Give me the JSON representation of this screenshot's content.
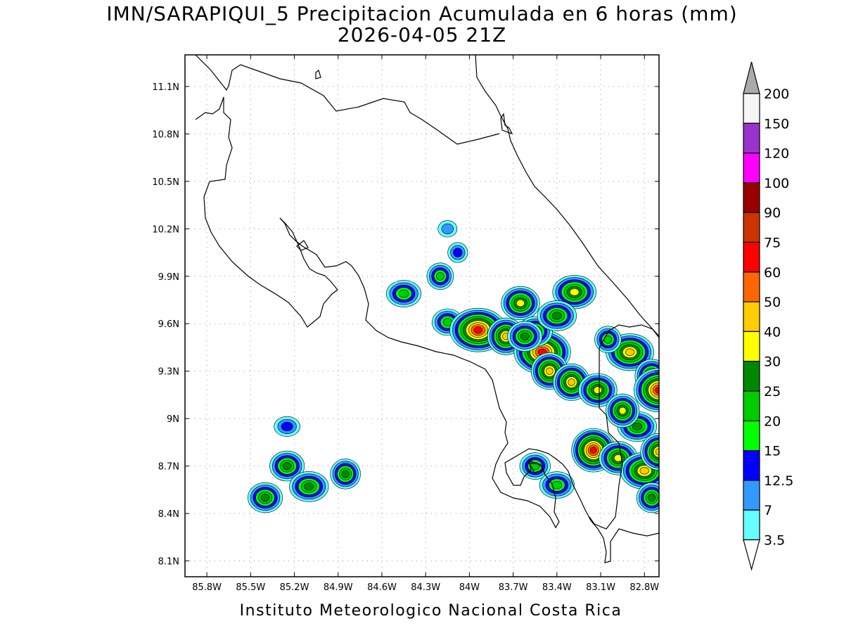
{
  "title": {
    "line1": "IMN/SARAPIQUI_5 Precipitacion Acumulada en 6 horas (mm)",
    "line2": "2026-04-05 21Z"
  },
  "credit": "Instituto Meteorologico Nacional Costa Rica",
  "map": {
    "lon_range": [
      -85.95,
      -82.7
    ],
    "lat_range": [
      8.0,
      11.3
    ],
    "x_ticks": [
      {
        "lon": -85.8,
        "label": "85.8W"
      },
      {
        "lon": -85.5,
        "label": "85.5W"
      },
      {
        "lon": -85.2,
        "label": "85.2W"
      },
      {
        "lon": -84.9,
        "label": "84.9W"
      },
      {
        "lon": -84.6,
        "label": "84.6W"
      },
      {
        "lon": -84.3,
        "label": "84.3W"
      },
      {
        "lon": -84.0,
        "label": "84W"
      },
      {
        "lon": -83.7,
        "label": "83.7W"
      },
      {
        "lon": -83.4,
        "label": "83.4W"
      },
      {
        "lon": -83.1,
        "label": "83.1W"
      },
      {
        "lon": -82.8,
        "label": "82.8W"
      }
    ],
    "y_ticks": [
      {
        "lat": 11.1,
        "label": "11.1N"
      },
      {
        "lat": 10.8,
        "label": "10.8N"
      },
      {
        "lat": 10.5,
        "label": "10.5N"
      },
      {
        "lat": 10.2,
        "label": "10.2N"
      },
      {
        "lat": 9.9,
        "label": "9.9N"
      },
      {
        "lat": 9.6,
        "label": "9.6N"
      },
      {
        "lat": 9.3,
        "label": "9.3N"
      },
      {
        "lat": 9.0,
        "label": "9N"
      },
      {
        "lat": 8.7,
        "label": "8.7N"
      },
      {
        "lat": 8.4,
        "label": "8.4N"
      },
      {
        "lat": 8.1,
        "label": "8.1N"
      }
    ],
    "gridlines": true
  },
  "colorbar": {
    "levels": [
      "3.5",
      "7",
      "12.5",
      "15",
      "20",
      "25",
      "30",
      "40",
      "50",
      "60",
      "75",
      "90",
      "100",
      "120",
      "150",
      "200"
    ],
    "colors": [
      "#ffffff",
      "#66ffff",
      "#3399ff",
      "#0000ff",
      "#00ff00",
      "#00cc00",
      "#008800",
      "#ffff00",
      "#ffcc00",
      "#ff6600",
      "#ff0000",
      "#cc3300",
      "#990000",
      "#ff00ff",
      "#9933cc",
      "#f5f5f5",
      "#aaaaaa"
    ]
  },
  "precip_cells": [
    {
      "lon": -84.08,
      "lat": 10.05,
      "peak": 12.5
    },
    {
      "lon": -84.15,
      "lat": 10.2,
      "peak": 7
    },
    {
      "lon": -84.45,
      "lat": 9.79,
      "peak": 20
    },
    {
      "lon": -84.2,
      "lat": 9.9,
      "peak": 20
    },
    {
      "lon": -84.15,
      "lat": 9.61,
      "peak": 20
    },
    {
      "lon": -83.94,
      "lat": 9.56,
      "peak": 60
    },
    {
      "lon": -83.75,
      "lat": 9.52,
      "peak": 40
    },
    {
      "lon": -83.65,
      "lat": 9.73,
      "peak": 30
    },
    {
      "lon": -83.5,
      "lat": 9.42,
      "peak": 60
    },
    {
      "lon": -83.45,
      "lat": 9.3,
      "peak": 40
    },
    {
      "lon": -83.55,
      "lat": 9.55,
      "peak": 25
    },
    {
      "lon": -83.28,
      "lat": 9.8,
      "peak": 30
    },
    {
      "lon": -83.3,
      "lat": 9.23,
      "peak": 40
    },
    {
      "lon": -83.12,
      "lat": 9.18,
      "peak": 30
    },
    {
      "lon": -82.9,
      "lat": 9.42,
      "peak": 40
    },
    {
      "lon": -82.75,
      "lat": 9.27,
      "peak": 30
    },
    {
      "lon": -82.7,
      "lat": 9.18,
      "peak": 60
    },
    {
      "lon": -82.85,
      "lat": 8.95,
      "peak": 25
    },
    {
      "lon": -83.15,
      "lat": 8.8,
      "peak": 60
    },
    {
      "lon": -82.98,
      "lat": 8.75,
      "peak": 30
    },
    {
      "lon": -82.8,
      "lat": 8.67,
      "peak": 40
    },
    {
      "lon": -82.7,
      "lat": 8.79,
      "peak": 40
    },
    {
      "lon": -83.55,
      "lat": 8.7,
      "peak": 20
    },
    {
      "lon": -83.4,
      "lat": 8.58,
      "peak": 20
    },
    {
      "lon": -82.75,
      "lat": 8.5,
      "peak": 25
    },
    {
      "lon": -85.25,
      "lat": 8.7,
      "peak": 25
    },
    {
      "lon": -85.1,
      "lat": 8.57,
      "peak": 25
    },
    {
      "lon": -84.85,
      "lat": 8.65,
      "peak": 25
    },
    {
      "lon": -85.4,
      "lat": 8.5,
      "peak": 25
    },
    {
      "lon": -85.25,
      "lat": 8.95,
      "peak": 12.5
    },
    {
      "lon": -82.95,
      "lat": 9.05,
      "peak": 30
    },
    {
      "lon": -83.62,
      "lat": 9.52,
      "peak": 25
    },
    {
      "lon": -83.4,
      "lat": 9.65,
      "peak": 25
    },
    {
      "lon": -83.05,
      "lat": 9.5,
      "peak": 20
    }
  ]
}
